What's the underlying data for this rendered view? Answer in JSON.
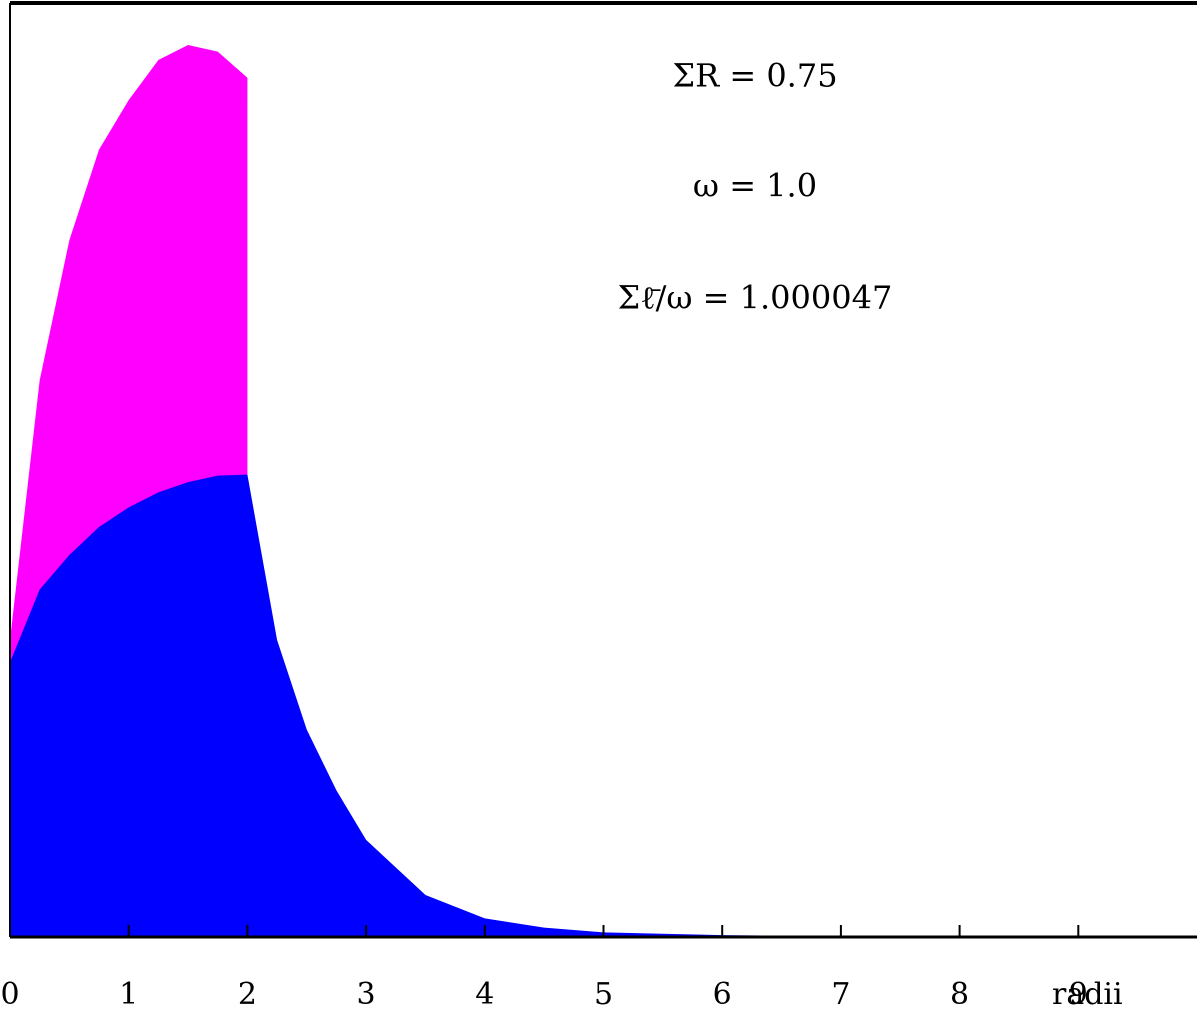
{
  "chart_data": {
    "type": "area",
    "annotations": [
      "ΣR = 0.75",
      "ω = 1.0",
      "Σℓ̄/ω = 1.000047"
    ],
    "x": [
      0,
      0.25,
      0.5,
      0.75,
      1,
      1.25,
      1.5,
      1.75,
      2,
      2.25,
      2.5,
      2.75,
      3,
      3.5,
      4,
      4.5,
      5,
      6,
      7,
      8,
      9,
      10
    ],
    "series": [
      {
        "color": "#ff00ff",
        "values": [
          0.318,
          0.596,
          0.746,
          0.843,
          0.896,
          0.939,
          0.955,
          0.948,
          0.92,
          null,
          null,
          null,
          null,
          null,
          null,
          null,
          null,
          null,
          null,
          null,
          null,
          null
        ]
      },
      {
        "color": "#0000ff",
        "values": [
          0.294,
          0.372,
          0.409,
          0.439,
          0.46,
          0.476,
          0.487,
          0.494,
          0.495,
          0.318,
          0.222,
          0.157,
          0.104,
          0.045,
          0.02,
          0.01,
          0.005,
          0.002,
          0.001,
          0,
          0,
          0
        ]
      }
    ],
    "xlabel": "radii",
    "xlim": [
      0,
      10
    ],
    "xticks": [
      0,
      1,
      2,
      3,
      4,
      5,
      6,
      7,
      8,
      9
    ],
    "ylim": [
      0,
      1
    ]
  }
}
